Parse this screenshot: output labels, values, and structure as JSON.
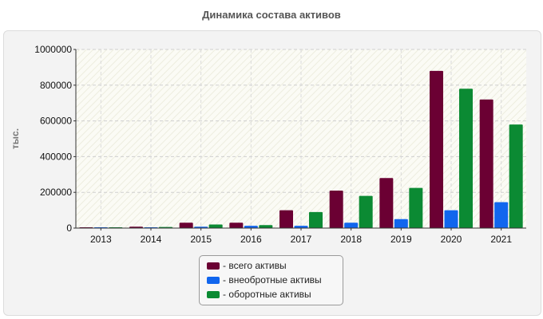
{
  "chart_data": {
    "type": "bar",
    "title": "Динамика состава активов",
    "xlabel": "",
    "ylabel": "тыс.",
    "ylim": [
      0,
      1000000
    ],
    "yticks": [
      0,
      200000,
      400000,
      600000,
      800000,
      1000000
    ],
    "grid": true,
    "legend_position": "bottom-center",
    "categories": [
      "2013",
      "2014",
      "2015",
      "2016",
      "2017",
      "2018",
      "2019",
      "2020",
      "2021"
    ],
    "series": [
      {
        "name": "- всего активы",
        "color": "#6b0033",
        "values": [
          3000,
          8000,
          30000,
          30000,
          100000,
          210000,
          280000,
          880000,
          720000
        ]
      },
      {
        "name": "- внеобротные активы",
        "color": "#1166ee",
        "values": [
          1500,
          2500,
          8000,
          13000,
          13000,
          30000,
          50000,
          100000,
          145000
        ]
      },
      {
        "name": "- оборотные активы",
        "color": "#0b8a33",
        "values": [
          2000,
          6000,
          20000,
          17000,
          90000,
          180000,
          225000,
          780000,
          580000
        ]
      }
    ]
  }
}
